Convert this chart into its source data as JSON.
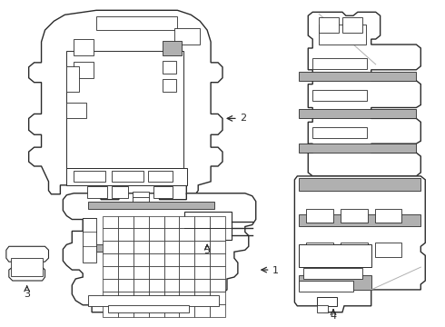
{
  "background": "#ffffff",
  "line_color": "#2a2a2a",
  "gray": "#b0b0b0",
  "figsize": [
    4.9,
    3.6
  ],
  "dpi": 100
}
